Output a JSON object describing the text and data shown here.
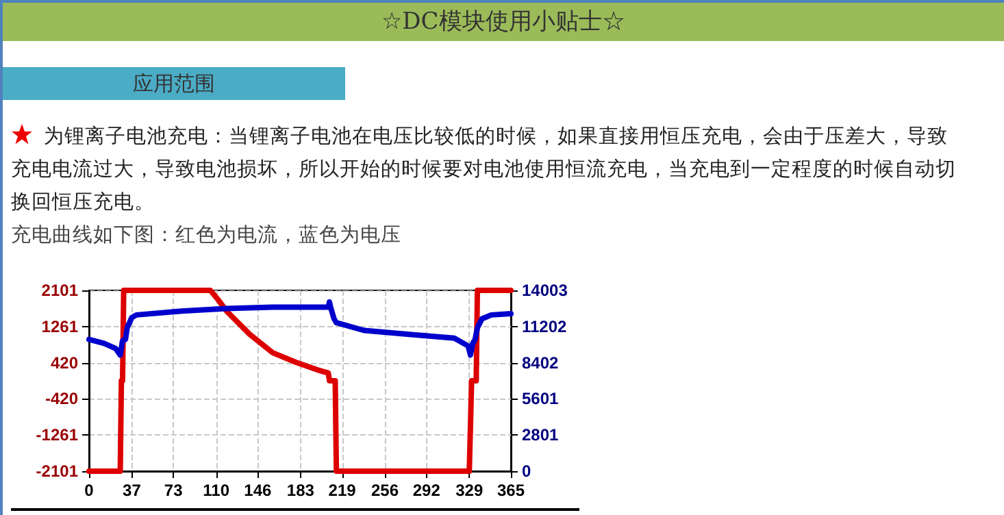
{
  "chart_data": {
    "type": "line",
    "title": "☆DC模块使用小贴士☆",
    "subtitle": "应用范围",
    "annotations": [
      "为锂离子电池充电：当锂离子电池在电压比较低的时候，如果直接用恒压充电，会由于压差大，导致充电电流过大，导致电池损坏，所以开始的时候要对电池使用恒流充电，当充电到一定程度的时候自动切换回恒压充电。",
      "充电曲线如下图：红色为电流，蓝色为电压"
    ],
    "xlim": [
      0,
      365
    ],
    "xticks": [
      0,
      37,
      73,
      110,
      146,
      183,
      219,
      256,
      292,
      329,
      365
    ],
    "ylim": [
      -2101,
      2101
    ],
    "yticks": [
      -2101,
      -1261,
      -420,
      420,
      1261,
      2101
    ],
    "y2lim": [
      0,
      14003
    ],
    "y2ticks": [
      0,
      2801,
      5601,
      8402,
      11202,
      14003
    ],
    "grid": true,
    "line_style": "solid",
    "series": [
      {
        "color": "#dd0000",
        "x": [
          0,
          27,
          28,
          29,
          30,
          105,
          111.5,
          119,
          139,
          159,
          179,
          198,
          207,
          208,
          213,
          214,
          329,
          331,
          335,
          336,
          365
        ],
        "values": [
          -2101,
          -2101,
          0,
          0,
          2101,
          2101,
          1890,
          1620,
          1080,
          650,
          430,
          250,
          180,
          0,
          0,
          -2101,
          -2101,
          0,
          0,
          2101,
          2101
        ]
      },
      {
        "color": "#0000cc",
        "axis": "y2",
        "x": [
          0,
          13,
          23,
          27,
          29,
          31.5,
          33,
          37,
          41,
          80,
          119,
          159,
          207,
          208,
          209,
          212,
          214,
          238,
          277,
          316,
          328,
          330,
          332,
          334,
          336,
          340,
          348,
          365
        ],
        "values": [
          10200,
          9900,
          9500,
          9000,
          10100,
          10200,
          11100,
          11900,
          12100,
          12400,
          12600,
          12700,
          12700,
          13100,
          12700,
          11800,
          11500,
          10900,
          10600,
          10300,
          9700,
          9000,
          9900,
          10200,
          11100,
          11800,
          12100,
          12200
        ]
      }
    ]
  }
}
